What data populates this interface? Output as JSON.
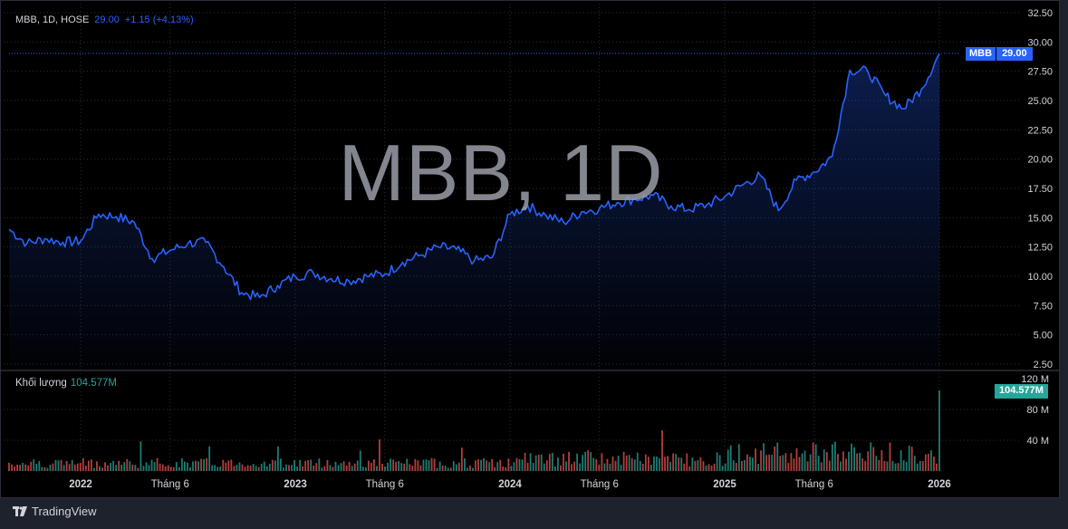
{
  "legend": {
    "symbol": "MBB, 1D, HOSE",
    "close": "29.00",
    "change": "+1.15 (+4.13%)"
  },
  "volume_legend": {
    "label": "Khối lượng",
    "value": "104.577M"
  },
  "watermark": "MBB, 1D",
  "price_tag": {
    "symbol": "MBB",
    "value": "29.00"
  },
  "volume_tag": "104.577M",
  "footer": {
    "brand": "TradingView"
  },
  "colors": {
    "line": "#2962ff",
    "vol_up": "#26a69a",
    "vol_down": "#ef5350",
    "background": "#000000"
  },
  "chart_data": [
    {
      "type": "area",
      "series": [
        {
          "name": "MBB",
          "x": [
            "2021-09",
            "2021-10",
            "2021-11",
            "2021-12",
            "2022-01",
            "2022-02",
            "2022-03",
            "2022-04",
            "2022-05",
            "2022-06",
            "2022-07",
            "2022-08",
            "2022-09",
            "2022-10",
            "2022-11",
            "2022-12",
            "2023-01",
            "2023-02",
            "2023-03",
            "2023-04",
            "2023-05",
            "2023-06",
            "2023-07",
            "2023-08",
            "2023-09",
            "2023-10",
            "2023-11",
            "2023-12",
            "2024-01",
            "2024-02",
            "2024-03",
            "2024-04",
            "2024-05",
            "2024-06",
            "2024-07",
            "2024-08",
            "2024-09",
            "2024-10",
            "2024-11",
            "2024-12",
            "2025-01",
            "2025-02",
            "2025-03",
            "2025-04",
            "2025-05",
            "2025-06",
            "2025-07",
            "2025-08",
            "2025-09",
            "2025-10",
            "2025-11",
            "2025-12",
            "2026-01"
          ],
          "y": [
            14.0,
            12.8,
            13.2,
            12.9,
            13.0,
            15.3,
            15.1,
            14.6,
            11.5,
            12.2,
            12.8,
            12.9,
            10.8,
            8.6,
            8.2,
            9.2,
            10.0,
            10.3,
            9.8,
            9.6,
            10.0,
            10.2,
            11.2,
            11.8,
            12.5,
            12.3,
            11.3,
            11.6,
            15.3,
            16.0,
            15.2,
            14.6,
            15.5,
            15.8,
            16.3,
            16.6,
            16.9,
            16.0,
            15.7,
            16.1,
            16.8,
            17.8,
            18.6,
            15.6,
            18.2,
            18.9,
            20.2,
            27.6,
            27.5,
            25.4,
            24.3,
            26.0,
            29.0
          ]
        }
      ],
      "ylim": [
        2.5,
        32.5
      ],
      "yticks": [
        "32.50",
        "30.00",
        "27.50",
        "25.00",
        "22.50",
        "20.00",
        "17.50",
        "15.00",
        "12.50",
        "10.00",
        "7.50",
        "5.00",
        "2.50"
      ],
      "grid": true
    },
    {
      "type": "bar",
      "series": [
        {
          "name": "Khối lượng",
          "unit": "M"
        }
      ],
      "yticks": [
        "120 M",
        "80 M",
        "40 M"
      ],
      "ylim": [
        0,
        120
      ],
      "last_value": 104.577,
      "grid": true
    }
  ],
  "x_axis": {
    "ticks": [
      {
        "label": "2022",
        "date": "2022-01"
      },
      {
        "label": "Tháng 6",
        "date": "2022-06"
      },
      {
        "label": "2023",
        "date": "2023-01"
      },
      {
        "label": "Tháng 6",
        "date": "2023-06"
      },
      {
        "label": "2024",
        "date": "2024-01"
      },
      {
        "label": "Tháng 6",
        "date": "2024-06"
      },
      {
        "label": "2025",
        "date": "2025-01"
      },
      {
        "label": "Tháng 6",
        "date": "2025-06"
      },
      {
        "label": "2026",
        "date": "2026-01"
      }
    ]
  }
}
